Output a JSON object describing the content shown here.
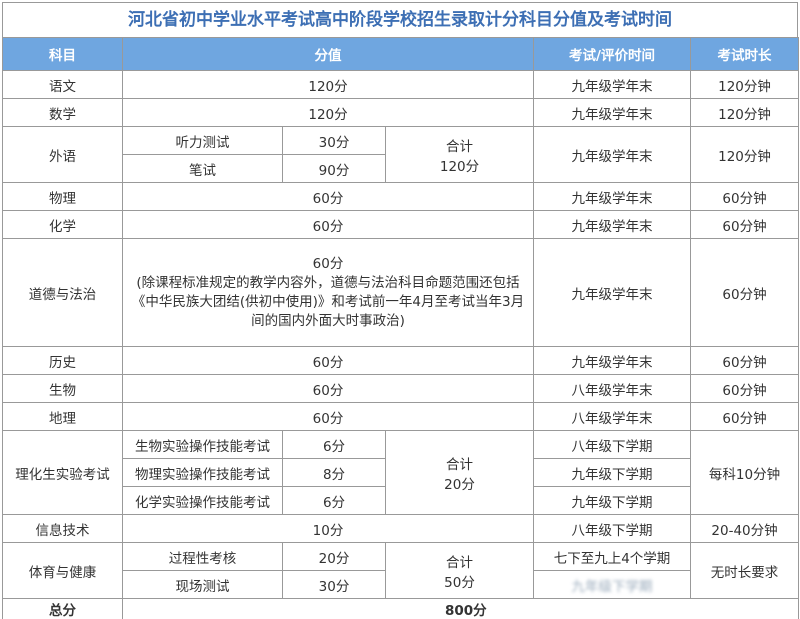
{
  "title": "河北省初中学业水平考试高中阶段学校招生录取计分科目分值及考试时间",
  "headers": [
    "科目",
    "分值",
    "考试/评价时间",
    "考试时长"
  ],
  "rows": {
    "yuwen": {
      "subject": "语文",
      "score": "120分",
      "time": "九年级学年末",
      "duration": "120分钟"
    },
    "shuxue": {
      "subject": "数学",
      "score": "120分",
      "time": "九年级学年末",
      "duration": "120分钟"
    },
    "waiyu": {
      "subject": "外语",
      "parts": [
        {
          "name": "听力测试",
          "score": "30分"
        },
        {
          "name": "笔试",
          "score": "90分"
        }
      ],
      "total_label": "合计",
      "total": "120分",
      "time": "九年级学年末",
      "duration": "120分钟"
    },
    "wuli": {
      "subject": "物理",
      "score": "60分",
      "time": "九年级学年末",
      "duration": "60分钟"
    },
    "huaxue": {
      "subject": "化学",
      "score": "60分",
      "time": "九年级学年末",
      "duration": "60分钟"
    },
    "daode": {
      "subject": "道德与法治",
      "score": "60分",
      "note": "(除课程标准规定的教学内容外，道德与法治科目命题范围还包括《中华民族大团结(供初中使用)》和考试前一年4月至考试当年3月间的国内外面大时事政治)",
      "time": "九年级学年末",
      "duration": "60分钟"
    },
    "lishi": {
      "subject": "历史",
      "score": "60分",
      "time": "九年级学年末",
      "duration": "60分钟"
    },
    "shengwu": {
      "subject": "生物",
      "score": "60分",
      "time": "八年级学年末",
      "duration": "60分钟"
    },
    "dili": {
      "subject": "地理",
      "score": "60分",
      "time": "八年级学年末",
      "duration": "60分钟"
    },
    "shiyan": {
      "subject": "理化生实验考试",
      "parts": [
        {
          "name": "生物实验操作技能考试",
          "score": "6分",
          "time": "八年级下学期"
        },
        {
          "name": "物理实验操作技能考试",
          "score": "8分",
          "time": "九年级下学期"
        },
        {
          "name": "化学实验操作技能考试",
          "score": "6分",
          "time": "九年级下学期"
        }
      ],
      "total_label": "合计",
      "total": "20分",
      "duration": "每科10分钟"
    },
    "xinxi": {
      "subject": "信息技术",
      "score": "10分",
      "time": "八年级下学期",
      "duration": "20-40分钟"
    },
    "tiyu": {
      "subject": "体育与健康",
      "parts": [
        {
          "name": "过程性考核",
          "score": "20分",
          "time": "七下至九上4个学期"
        },
        {
          "name": "现场测试",
          "score": "30分",
          "time": "九年级下学期"
        }
      ],
      "total_label": "合计",
      "total": "50分",
      "duration": "无时长要求"
    },
    "zongfen": {
      "subject": "总分",
      "score": "800分"
    }
  }
}
